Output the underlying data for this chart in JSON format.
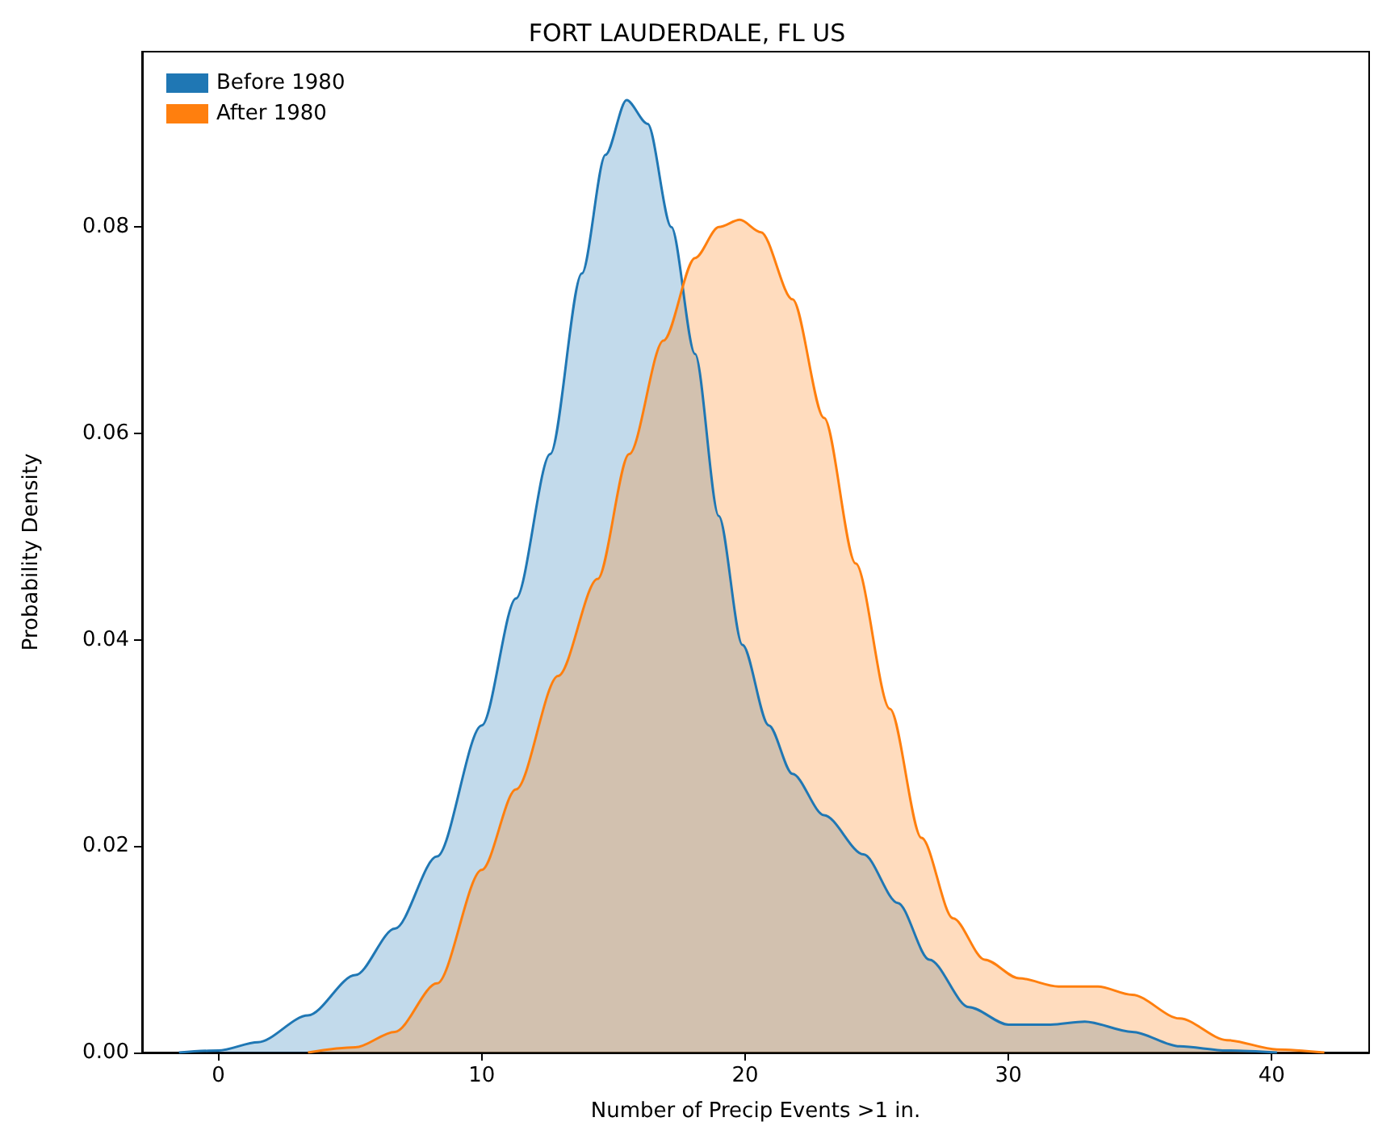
{
  "chart_data": {
    "type": "area",
    "title": "FORT LAUDERDALE, FL US",
    "xlabel": "Number of Precip Events >1 in.",
    "ylabel": "Probability Density",
    "xlim": [
      -2.9,
      43.7
    ],
    "xticks": [
      0,
      10,
      20,
      30,
      40
    ],
    "ylim": [
      0,
      0.097
    ],
    "yticks": [
      {
        "value": 0,
        "label": "0.00"
      },
      {
        "value": 0.02,
        "label": "0.02"
      },
      {
        "value": 0.04,
        "label": "0.04"
      },
      {
        "value": 0.06,
        "label": "0.06"
      },
      {
        "value": 0.08,
        "label": "0.08"
      }
    ],
    "grid": false,
    "legend": "top left",
    "marker": "none",
    "line_style": "solid",
    "series": [
      {
        "name": "Before 1980",
        "color": "#1f77b4",
        "x": [
          -1.5,
          0,
          1.5,
          3.4,
          5.2,
          6.7,
          8.3,
          10,
          11.3,
          12.6,
          13.8,
          14.7,
          15.5,
          16.3,
          17.2,
          18.1,
          19.0,
          19.9,
          20.9,
          21.8,
          23,
          24.5,
          25.8,
          27,
          28.5,
          30,
          31.6,
          32.9,
          34.7,
          36.5,
          38.3,
          40.2
        ],
        "values": [
          0,
          0.0002,
          0.001,
          0.0036,
          0.0075,
          0.012,
          0.019,
          0.0317,
          0.044,
          0.058,
          0.0755,
          0.087,
          0.0923,
          0.09,
          0.08,
          0.0677,
          0.052,
          0.0395,
          0.0317,
          0.027,
          0.023,
          0.0192,
          0.0145,
          0.009,
          0.0044,
          0.0027,
          0.0027,
          0.003,
          0.002,
          0.0006,
          0.0002,
          0
        ]
      },
      {
        "name": "After 1980",
        "color": "#ff7f0e",
        "x": [
          3.4,
          5.2,
          6.7,
          8.3,
          10,
          11.3,
          12.9,
          14.4,
          15.6,
          16.9,
          18.1,
          19,
          19.8,
          20.6,
          21.8,
          23,
          24.2,
          25.5,
          26.7,
          27.9,
          29.1,
          30.4,
          31.9,
          33.4,
          34.7,
          36.5,
          38.3,
          40.2,
          42
        ],
        "values": [
          0,
          0.0005,
          0.002,
          0.0067,
          0.0177,
          0.0255,
          0.0365,
          0.0459,
          0.058,
          0.069,
          0.077,
          0.08,
          0.0807,
          0.0795,
          0.073,
          0.0615,
          0.0474,
          0.0333,
          0.0208,
          0.013,
          0.009,
          0.0072,
          0.0064,
          0.0064,
          0.0056,
          0.0033,
          0.0012,
          0.0003,
          0
        ]
      }
    ]
  }
}
